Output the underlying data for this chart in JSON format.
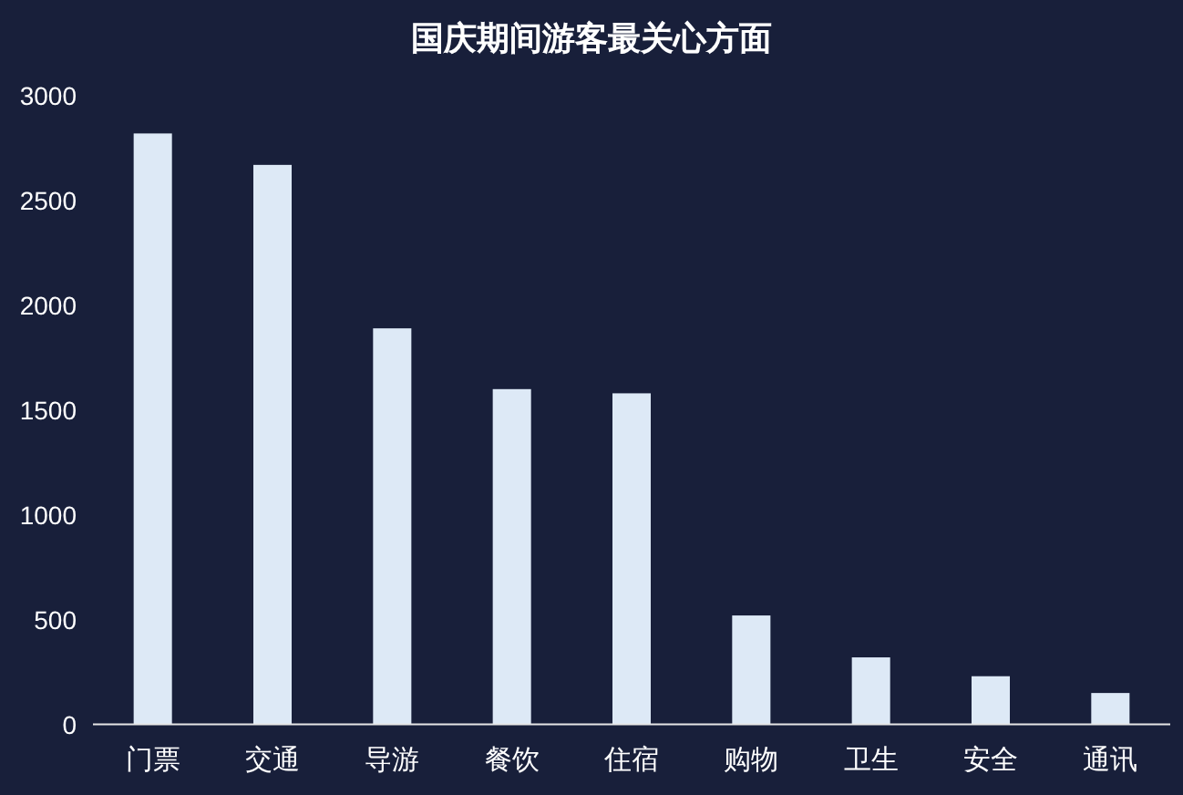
{
  "chart_data": {
    "type": "bar",
    "title": "国庆期间游客最关心方面",
    "categories": [
      "门票",
      "交通",
      "导游",
      "餐饮",
      "住宿",
      "购物",
      "卫生",
      "安全",
      "通讯"
    ],
    "values": [
      2820,
      2670,
      1890,
      1600,
      1580,
      520,
      320,
      230,
      150
    ],
    "color": "#dde9f6",
    "ylim": [
      0,
      3000
    ],
    "yticks": [
      0,
      500,
      1000,
      1500,
      2000,
      2500,
      3000
    ],
    "grid": false
  }
}
